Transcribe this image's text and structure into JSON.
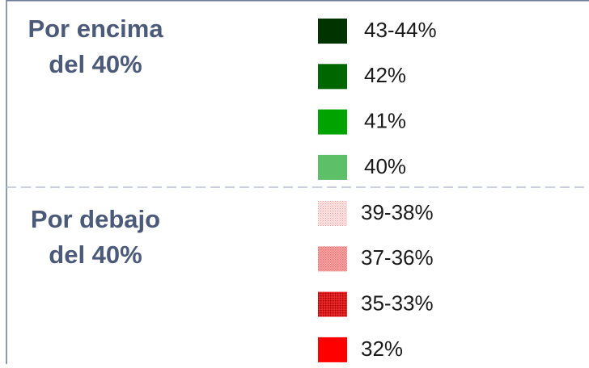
{
  "legend": {
    "groups": [
      {
        "title": [
          "Por encima",
          "del 40%"
        ],
        "items": [
          {
            "label": "43-44%",
            "color": "#003300"
          },
          {
            "label": "42%",
            "color": "#006600"
          },
          {
            "label": "41%",
            "color": "#00a300"
          },
          {
            "label": "40%",
            "color": "#5dbf68"
          }
        ]
      },
      {
        "title": [
          "Por debajo",
          "del 40%"
        ],
        "items": [
          {
            "label": "39-38%",
            "color": "#ff0000",
            "pattern": "dots-light"
          },
          {
            "label": "37-36%",
            "color": "#ff0000",
            "pattern": "dots-medium"
          },
          {
            "label": "35-33%",
            "color": "#ff0000",
            "pattern": "dots-dense"
          },
          {
            "label": "32%",
            "color": "#ff0000"
          }
        ]
      }
    ]
  }
}
